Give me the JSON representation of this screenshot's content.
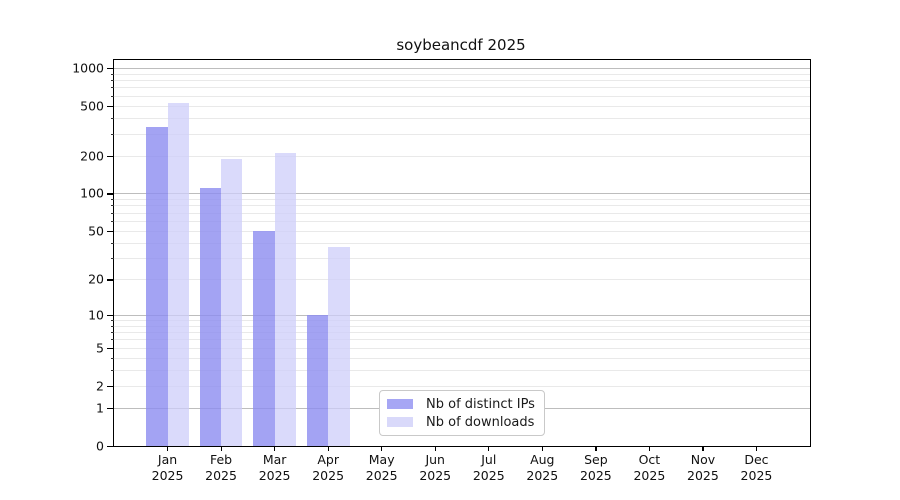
{
  "chart_data": {
    "type": "bar",
    "title": "soybeancdf 2025",
    "year": "2025",
    "months": [
      "Jan",
      "Feb",
      "Mar",
      "Apr",
      "May",
      "Jun",
      "Jul",
      "Aug",
      "Sep",
      "Oct",
      "Nov",
      "Dec"
    ],
    "series": [
      {
        "name": "Nb of distinct IPs",
        "color": "#a6a6f4",
        "fill": "rgba(140,140,240,0.8)",
        "values": [
          340,
          110,
          50,
          10,
          0,
          0,
          0,
          0,
          0,
          0,
          0,
          0
        ]
      },
      {
        "name": "Nb of downloads",
        "color": "#d9d9fa",
        "fill": "rgba(205,205,250,0.75)",
        "values": [
          530,
          190,
          210,
          37,
          0,
          0,
          0,
          0,
          0,
          0,
          0,
          0
        ]
      }
    ],
    "yscale": "log10(value+1)",
    "ylim": [
      0,
      1155
    ],
    "yticks": [
      1000,
      500,
      200,
      100,
      50,
      20,
      10,
      5,
      2,
      1,
      0
    ],
    "major_gridlines": [
      1,
      10,
      100,
      1000
    ],
    "minor_gridlines": [
      2,
      3,
      4,
      5,
      6,
      7,
      8,
      9,
      20,
      30,
      40,
      50,
      60,
      70,
      80,
      90,
      200,
      300,
      400,
      500,
      600,
      700,
      800,
      900
    ],
    "grid_color_major": "#bdbdbd",
    "grid_color_minor": "#e9e9e9",
    "legend": {
      "position": "lower center inside axes",
      "items": [
        "Nb of distinct IPs",
        "Nb of downloads"
      ]
    }
  }
}
